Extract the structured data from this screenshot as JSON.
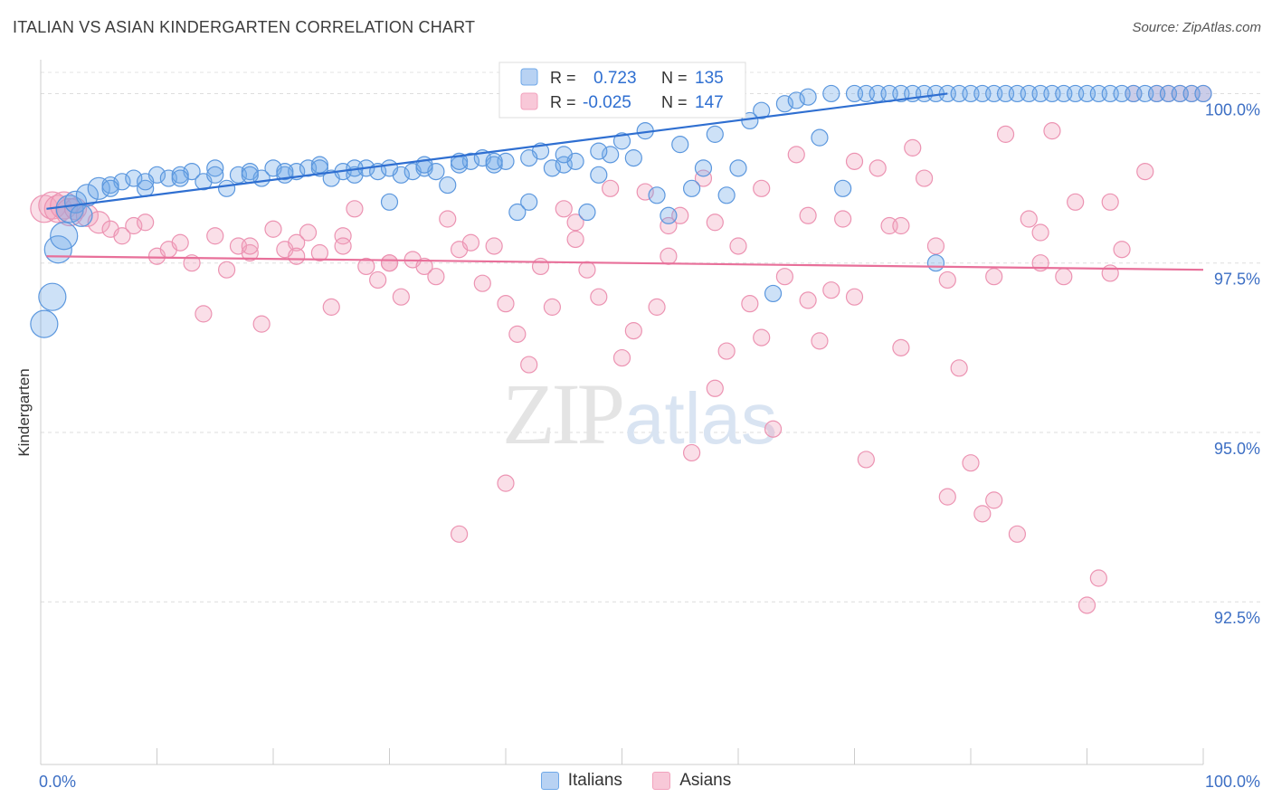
{
  "title": "ITALIAN VS ASIAN KINDERGARTEN CORRELATION CHART",
  "source": "Source: ZipAtlas.com",
  "watermark": {
    "zip": "ZIP",
    "atlas": "atlas"
  },
  "legend_box": {
    "rows": [
      {
        "r_label": "R =",
        "r_value": "0.723",
        "n_label": "N =",
        "n_value": "135"
      },
      {
        "r_label": "R =",
        "r_value": "-0.025",
        "n_label": "N =",
        "n_value": "147"
      }
    ]
  },
  "bottom_legend": [
    "Italians",
    "Asians"
  ],
  "chart_data": {
    "type": "scatter",
    "xlabel": "",
    "ylabel": "Kindergarten",
    "xlim": [
      0,
      100
    ],
    "ylim": [
      90.1,
      100.5
    ],
    "x_tick_labels": {
      "left": "0.0%",
      "right": "100.0%"
    },
    "y_ticks": [
      {
        "value": 100.0,
        "label": "100.0%"
      },
      {
        "value": 97.5,
        "label": "97.5%"
      },
      {
        "value": 95.0,
        "label": "95.0%"
      },
      {
        "value": 92.5,
        "label": "92.5%"
      }
    ],
    "grid": "horizontal-dashed",
    "colors": {
      "Italians": "#6fa8e8",
      "Asians": "#f2a2bd",
      "italians_line": "#2f6fd1",
      "asians_line": "#e8709a"
    },
    "trend_lines": [
      {
        "series": "Italians",
        "x": [
          0.5,
          78
        ],
        "y": [
          98.3,
          100.0
        ]
      },
      {
        "series": "Asians",
        "x": [
          0.5,
          100
        ],
        "y": [
          97.6,
          97.4
        ]
      }
    ],
    "series": [
      {
        "name": "Italians",
        "points": [
          [
            0.3,
            96.6
          ],
          [
            1,
            97.0
          ],
          [
            1.5,
            97.7
          ],
          [
            2,
            97.9
          ],
          [
            2.5,
            98.3
          ],
          [
            3,
            98.4
          ],
          [
            4,
            98.5
          ],
          [
            5,
            98.6
          ],
          [
            6,
            98.65
          ],
          [
            7,
            98.7
          ],
          [
            8,
            98.75
          ],
          [
            9,
            98.6
          ],
          [
            10,
            98.8
          ],
          [
            11,
            98.75
          ],
          [
            12,
            98.8
          ],
          [
            13,
            98.85
          ],
          [
            14,
            98.7
          ],
          [
            15,
            98.9
          ],
          [
            16,
            98.6
          ],
          [
            17,
            98.8
          ],
          [
            18,
            98.85
          ],
          [
            19,
            98.75
          ],
          [
            20,
            98.9
          ],
          [
            21,
            98.8
          ],
          [
            22,
            98.85
          ],
          [
            23,
            98.9
          ],
          [
            24,
            98.95
          ],
          [
            25,
            98.75
          ],
          [
            26,
            98.85
          ],
          [
            27,
            98.8
          ],
          [
            28,
            98.9
          ],
          [
            29,
            98.85
          ],
          [
            30,
            98.4
          ],
          [
            31,
            98.8
          ],
          [
            32,
            98.85
          ],
          [
            33,
            98.9
          ],
          [
            34,
            98.85
          ],
          [
            35,
            98.65
          ],
          [
            36,
            98.95
          ],
          [
            37,
            99.0
          ],
          [
            38,
            99.05
          ],
          [
            39,
            98.95
          ],
          [
            40,
            99.0
          ],
          [
            41,
            98.25
          ],
          [
            42,
            98.4
          ],
          [
            43,
            99.15
          ],
          [
            44,
            98.9
          ],
          [
            45,
            98.95
          ],
          [
            46,
            99.0
          ],
          [
            47,
            98.25
          ],
          [
            48,
            98.8
          ],
          [
            49,
            99.1
          ],
          [
            50,
            99.3
          ],
          [
            51,
            99.05
          ],
          [
            52,
            99.45
          ],
          [
            53,
            98.5
          ],
          [
            54,
            98.2
          ],
          [
            55,
            99.25
          ],
          [
            56,
            98.6
          ],
          [
            57,
            98.9
          ],
          [
            58,
            99.4
          ],
          [
            59,
            98.5
          ],
          [
            60,
            98.9
          ],
          [
            61,
            99.6
          ],
          [
            62,
            99.75
          ],
          [
            63,
            97.05
          ],
          [
            64,
            99.85
          ],
          [
            65,
            99.9
          ],
          [
            66,
            99.95
          ],
          [
            67,
            99.35
          ],
          [
            68,
            100.0
          ],
          [
            69,
            98.6
          ],
          [
            70,
            100.0
          ],
          [
            71,
            100.0
          ],
          [
            72,
            100.0
          ],
          [
            73,
            100.0
          ],
          [
            74,
            100.0
          ],
          [
            75,
            100.0
          ],
          [
            76,
            100.0
          ],
          [
            77,
            100.0
          ],
          [
            78,
            100.0
          ],
          [
            79,
            100.0
          ],
          [
            80,
            100.0
          ],
          [
            81,
            100.0
          ],
          [
            82,
            100.0
          ],
          [
            83,
            100.0
          ],
          [
            84,
            100.0
          ],
          [
            85,
            100.0
          ],
          [
            86,
            100.0
          ],
          [
            87,
            100.0
          ],
          [
            88,
            100.0
          ],
          [
            89,
            100.0
          ],
          [
            90,
            100.0
          ],
          [
            91,
            100.0
          ],
          [
            92,
            100.0
          ],
          [
            93,
            100.0
          ],
          [
            94,
            100.0
          ],
          [
            95,
            100.0
          ],
          [
            96,
            100.0
          ],
          [
            97,
            100.0
          ],
          [
            98,
            100.0
          ],
          [
            99,
            100.0
          ],
          [
            100,
            100.0
          ],
          [
            77,
            97.5
          ],
          [
            3.5,
            98.2
          ],
          [
            6,
            98.6
          ],
          [
            9,
            98.7
          ],
          [
            12,
            98.75
          ],
          [
            15,
            98.8
          ],
          [
            18,
            98.8
          ],
          [
            21,
            98.85
          ],
          [
            24,
            98.9
          ],
          [
            27,
            98.9
          ],
          [
            30,
            98.9
          ],
          [
            33,
            98.95
          ],
          [
            36,
            99.0
          ],
          [
            39,
            99.0
          ],
          [
            42,
            99.05
          ],
          [
            45,
            99.1
          ],
          [
            48,
            99.15
          ]
        ],
        "size_hint": "small; larger near 0%"
      },
      {
        "name": "Asians",
        "points": [
          [
            0.3,
            98.3
          ],
          [
            1,
            98.35
          ],
          [
            1.5,
            98.3
          ],
          [
            2,
            98.35
          ],
          [
            2.5,
            98.25
          ],
          [
            3,
            98.3
          ],
          [
            4,
            98.2
          ],
          [
            5,
            98.1
          ],
          [
            6,
            98.0
          ],
          [
            7,
            97.9
          ],
          [
            8,
            98.05
          ],
          [
            9,
            98.1
          ],
          [
            10,
            97.6
          ],
          [
            11,
            97.7
          ],
          [
            12,
            97.8
          ],
          [
            13,
            97.5
          ],
          [
            14,
            96.75
          ],
          [
            15,
            97.9
          ],
          [
            16,
            97.4
          ],
          [
            17,
            97.75
          ],
          [
            18,
            97.65
          ],
          [
            19,
            96.6
          ],
          [
            20,
            98.0
          ],
          [
            21,
            97.7
          ],
          [
            22,
            97.8
          ],
          [
            23,
            97.95
          ],
          [
            24,
            97.65
          ],
          [
            25,
            96.85
          ],
          [
            26,
            97.9
          ],
          [
            27,
            98.3
          ],
          [
            28,
            97.45
          ],
          [
            29,
            97.25
          ],
          [
            30,
            97.5
          ],
          [
            31,
            97.0
          ],
          [
            32,
            97.55
          ],
          [
            33,
            97.45
          ],
          [
            34,
            97.3
          ],
          [
            35,
            98.15
          ],
          [
            36,
            97.7
          ],
          [
            37,
            97.8
          ],
          [
            38,
            97.2
          ],
          [
            39,
            97.75
          ],
          [
            40,
            96.9
          ],
          [
            41,
            96.45
          ],
          [
            42,
            96.0
          ],
          [
            43,
            97.45
          ],
          [
            44,
            96.85
          ],
          [
            45,
            98.3
          ],
          [
            46,
            98.1
          ],
          [
            47,
            97.4
          ],
          [
            48,
            97.0
          ],
          [
            49,
            98.6
          ],
          [
            50,
            96.1
          ],
          [
            51,
            96.5
          ],
          [
            52,
            98.55
          ],
          [
            53,
            96.85
          ],
          [
            54,
            97.6
          ],
          [
            55,
            98.2
          ],
          [
            56,
            94.7
          ],
          [
            57,
            98.75
          ],
          [
            58,
            95.65
          ],
          [
            59,
            96.2
          ],
          [
            60,
            97.75
          ],
          [
            61,
            96.9
          ],
          [
            62,
            96.4
          ],
          [
            63,
            95.05
          ],
          [
            64,
            97.3
          ],
          [
            65,
            99.1
          ],
          [
            66,
            98.2
          ],
          [
            67,
            96.35
          ],
          [
            68,
            97.1
          ],
          [
            69,
            98.15
          ],
          [
            70,
            97.0
          ],
          [
            71,
            94.6
          ],
          [
            72,
            98.9
          ],
          [
            73,
            98.05
          ],
          [
            74,
            96.25
          ],
          [
            75,
            99.2
          ],
          [
            76,
            98.75
          ],
          [
            77,
            97.75
          ],
          [
            78,
            94.05
          ],
          [
            79,
            95.95
          ],
          [
            80,
            94.55
          ],
          [
            81,
            93.8
          ],
          [
            82,
            97.3
          ],
          [
            83,
            99.4
          ],
          [
            84,
            93.5
          ],
          [
            85,
            98.15
          ],
          [
            86,
            97.5
          ],
          [
            87,
            99.45
          ],
          [
            88,
            97.3
          ],
          [
            89,
            98.4
          ],
          [
            90,
            92.45
          ],
          [
            91,
            92.85
          ],
          [
            92,
            97.35
          ],
          [
            93,
            97.7
          ],
          [
            94,
            100.0
          ],
          [
            95,
            98.85
          ],
          [
            96,
            100.0
          ],
          [
            97,
            100.0
          ],
          [
            98,
            100.0
          ],
          [
            99,
            100.0
          ],
          [
            100,
            100.0
          ],
          [
            36,
            93.5
          ],
          [
            40,
            94.25
          ],
          [
            46,
            97.85
          ],
          [
            54,
            98.05
          ],
          [
            58,
            98.1
          ],
          [
            62,
            98.6
          ],
          [
            66,
            96.95
          ],
          [
            70,
            99.0
          ],
          [
            74,
            98.05
          ],
          [
            78,
            97.25
          ],
          [
            82,
            94.0
          ],
          [
            86,
            97.95
          ],
          [
            92,
            98.4
          ],
          [
            30,
            97.5
          ],
          [
            26,
            97.75
          ],
          [
            22,
            97.6
          ],
          [
            18,
            97.75
          ]
        ],
        "size_hint": "medium"
      }
    ]
  }
}
